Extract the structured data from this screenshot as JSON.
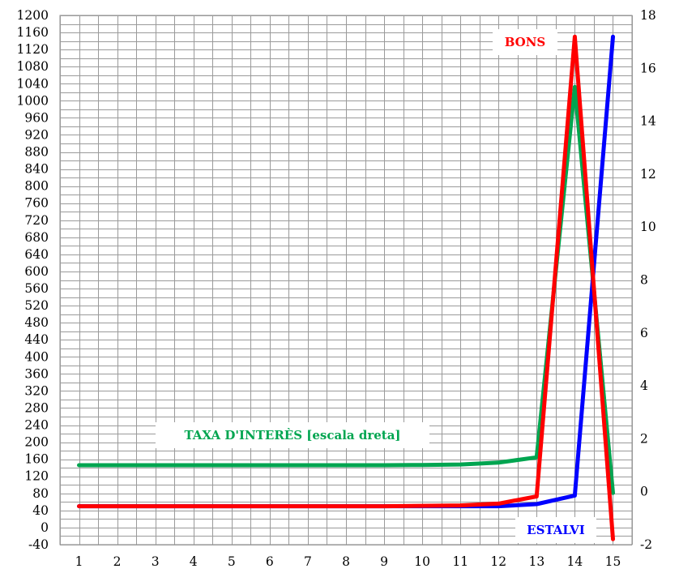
{
  "chart_data": {
    "type": "line",
    "title": "",
    "xlabel": "",
    "ylabel": "",
    "categories": [
      "1",
      "2",
      "3",
      "4",
      "5",
      "6",
      "7",
      "8",
      "9",
      "10",
      "11",
      "12",
      "13",
      "14",
      "15"
    ],
    "y_left": {
      "min": -40,
      "max": 1200,
      "step": 20,
      "tick_step": 40,
      "ticks": [
        "-40",
        "0",
        "40",
        "80",
        "120",
        "160",
        "200",
        "240",
        "280",
        "320",
        "360",
        "400",
        "440",
        "480",
        "520",
        "560",
        "600",
        "640",
        "680",
        "720",
        "760",
        "800",
        "840",
        "880",
        "920",
        "960",
        "1000",
        "1040",
        "1080",
        "1120",
        "1160",
        "1200"
      ]
    },
    "y_right": {
      "min": -2,
      "max": 18,
      "step": 2,
      "ticks": [
        "-2",
        "0",
        "2",
        "4",
        "6",
        "8",
        "10",
        "12",
        "14",
        "16",
        "18"
      ]
    },
    "grid": true,
    "series": [
      {
        "name": "ESTALVI",
        "axis": "left",
        "color": "#0000ff",
        "values": [
          50,
          50,
          50,
          50,
          50,
          50,
          50,
          50,
          50,
          50,
          50,
          50,
          55,
          75,
          1150
        ]
      },
      {
        "name": "BONS",
        "axis": "left",
        "color": "#ff0000",
        "values": [
          50,
          50,
          50,
          50,
          50,
          50,
          50,
          50,
          50,
          51,
          52,
          56,
          73,
          1150,
          -27
        ]
      },
      {
        "name": "TAXA D'INTERÈS [escala dreta]",
        "axis": "right",
        "color": "#00a550",
        "values": [
          1.0,
          1.0,
          1.0,
          1.0,
          1.0,
          1.0,
          1.0,
          1.0,
          1.0,
          1.01,
          1.03,
          1.1,
          1.3,
          15.3,
          -0.05
        ]
      }
    ],
    "annotations": [
      {
        "text": "BONS",
        "color": "#ff0000"
      },
      {
        "text": "TAXA D'INTERÈS [escala dreta]",
        "color": "#00a550"
      },
      {
        "text": "ESTALVI",
        "color": "#0000ff"
      }
    ]
  }
}
